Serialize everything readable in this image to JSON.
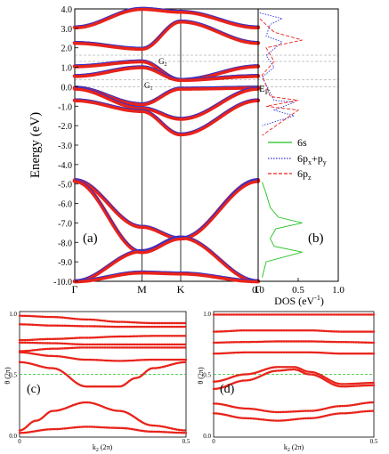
{
  "colors": {
    "thick_band": "#e8231a",
    "thin_band": "#2a35d6",
    "s_curve": "#22c21f",
    "pxy_curve": "#2a35d6",
    "pz_curve": "#e8231a",
    "frame": "#000000",
    "guide": "#909090"
  },
  "panel_a": {
    "label": "(a)",
    "ylabel": "Energy (eV)",
    "ylim": [
      -10.0,
      4.0
    ],
    "yticks": [
      "4.0",
      "3.0",
      "2.0",
      "1.0",
      "0.0",
      "-1.0",
      "-2.0",
      "-3.0",
      "-4.0",
      "-5.0",
      "-6.0",
      "-7.0",
      "-8.0",
      "-9.0",
      "-10.0"
    ],
    "ytick_values": [
      4,
      3,
      2,
      1,
      0,
      -1,
      -2,
      -3,
      -4,
      -5,
      -6,
      -7,
      -8,
      -9,
      -10
    ],
    "kpoints": [
      "Γ",
      "M",
      "K",
      "Γ"
    ],
    "kpoint_positions": [
      0,
      0.5,
      0.789,
      1.366
    ],
    "annotations": {
      "g2": "G",
      "g2_sub": "2",
      "g1": "G",
      "g1_sub": "1"
    }
  },
  "panel_b": {
    "label": "(b)",
    "xlabel": "DOS (eV",
    "xlabel_sup": "-1",
    "xlabel_end": ")",
    "xticks": [
      "0.0",
      "0.5",
      "1.0"
    ],
    "fermi_label": "E",
    "fermi_sub": "F",
    "legend": [
      {
        "text": "6s"
      },
      {
        "text": "6p",
        "sub1": "x",
        "mid": "+p",
        "sub2": "y"
      },
      {
        "text": "6p",
        "sub1": "z"
      }
    ]
  },
  "panel_c": {
    "label": "(c)",
    "ylabel": "θ (2π)",
    "xlabel": "k",
    "xlabel_sub": "2",
    "xlabel_end": " (2π)",
    "yticks": [
      "0.0",
      "0.5",
      "1.0"
    ],
    "xticks": [
      "0",
      "0.5"
    ]
  },
  "panel_d": {
    "label": "(d)",
    "ylabel": "θ (2π)",
    "xlabel": "k",
    "xlabel_sub": "2",
    "xlabel_end": " (2π)",
    "yticks": [
      "0.0",
      "0.5",
      "1.0"
    ],
    "xticks": [
      "0",
      "0.5"
    ]
  },
  "chart_data": [
    {
      "type": "line",
      "panel": "a",
      "xlabel": "",
      "ylabel": "Energy (eV)",
      "ylim": [
        -10,
        4
      ],
      "x": [
        0,
        0.5,
        0.789,
        1.366
      ],
      "series": [
        {
          "values": [
            -4.8,
            -7.2,
            -7.8,
            -4.8
          ]
        },
        {
          "values": [
            -4.85,
            -8.5,
            -7.8,
            -4.85
          ]
        },
        {
          "values": [
            -10,
            -8.45,
            -7.75,
            -10
          ]
        },
        {
          "values": [
            -10,
            -9.55,
            -9.6,
            -10
          ]
        },
        {
          "values": [
            -0.05,
            -0.9,
            -0.1,
            -0.05
          ]
        },
        {
          "values": [
            -0.1,
            -1.1,
            -1.65,
            -0.1
          ]
        },
        {
          "values": [
            -0.7,
            -1.25,
            -2.45,
            -0.7
          ]
        },
        {
          "values": [
            0.55,
            1.0,
            0.35,
            0.55
          ]
        },
        {
          "values": [
            1.05,
            1.3,
            0.35,
            1.05
          ]
        },
        {
          "values": [
            2.25,
            1.95,
            3.35,
            2.25
          ]
        },
        {
          "values": [
            3.05,
            4.0,
            3.85,
            3.05
          ]
        }
      ]
    },
    {
      "type": "line",
      "panel": "b",
      "xlabel": "DOS (eV-1)",
      "xlim": [
        0,
        1.0
      ],
      "ylim": [
        -10,
        4
      ],
      "series": [
        {
          "name": "6s",
          "values": [
            [
              0.05,
              -4.9
            ],
            [
              0.1,
              -5.5
            ],
            [
              0.15,
              -6.2
            ],
            [
              0.25,
              -6.7
            ],
            [
              0.55,
              -7.0
            ],
            [
              0.22,
              -7.3
            ],
            [
              0.15,
              -7.8
            ],
            [
              0.2,
              -8.2
            ],
            [
              0.55,
              -8.5
            ],
            [
              0.1,
              -9.0
            ],
            [
              0.05,
              -9.8
            ]
          ]
        },
        {
          "name": "6px+py",
          "values": [
            [
              0.02,
              3.8
            ],
            [
              0.3,
              3.5
            ],
            [
              0.15,
              3.2
            ],
            [
              0.1,
              2.6
            ],
            [
              0.3,
              2.3
            ],
            [
              0.1,
              1.6
            ],
            [
              0.2,
              1.0
            ],
            [
              0.05,
              0.5
            ],
            [
              0.2,
              -0.7
            ],
            [
              0.45,
              -0.8
            ],
            [
              0.2,
              -1.2
            ],
            [
              0.45,
              -1.5
            ],
            [
              0.05,
              -2.0
            ]
          ]
        },
        {
          "name": "6pz",
          "values": [
            [
              0.02,
              3.5
            ],
            [
              0.2,
              2.8
            ],
            [
              0.55,
              2.4
            ],
            [
              0.1,
              2.0
            ],
            [
              0.2,
              1.3
            ],
            [
              0.05,
              0.6
            ],
            [
              0.15,
              -0.5
            ],
            [
              0.5,
              -0.7
            ],
            [
              0.1,
              -1.0
            ],
            [
              0.5,
              -1.2
            ],
            [
              0.05,
              -2.5
            ]
          ]
        }
      ]
    },
    {
      "type": "line",
      "panel": "c",
      "xlabel": "k2 (2π)",
      "ylabel": "θ (2π)",
      "xlim": [
        0,
        0.5
      ],
      "ylim": [
        0,
        1
      ],
      "series": [
        {
          "values": [
            [
              0,
              0.98
            ],
            [
              0.1,
              0.97
            ],
            [
              0.2,
              0.95
            ],
            [
              0.3,
              0.93
            ],
            [
              0.4,
              0.92
            ],
            [
              0.5,
              0.92
            ]
          ]
        },
        {
          "values": [
            [
              0,
              0.91
            ],
            [
              0.1,
              0.9
            ],
            [
              0.2,
              0.895
            ],
            [
              0.3,
              0.89
            ],
            [
              0.4,
              0.89
            ],
            [
              0.5,
              0.89
            ]
          ]
        },
        {
          "values": [
            [
              0,
              0.78
            ],
            [
              0.1,
              0.79
            ],
            [
              0.2,
              0.8
            ],
            [
              0.3,
              0.81
            ],
            [
              0.4,
              0.815
            ],
            [
              0.5,
              0.815
            ]
          ]
        },
        {
          "values": [
            [
              0,
              0.76
            ],
            [
              0.1,
              0.755
            ],
            [
              0.2,
              0.745
            ],
            [
              0.3,
              0.745
            ],
            [
              0.4,
              0.745
            ],
            [
              0.5,
              0.745
            ]
          ]
        },
        {
          "values": [
            [
              0,
              0.69
            ],
            [
              0.1,
              0.71
            ],
            [
              0.2,
              0.72
            ],
            [
              0.3,
              0.72
            ],
            [
              0.4,
              0.72
            ],
            [
              0.5,
              0.72
            ]
          ]
        },
        {
          "values": [
            [
              0,
              0.68
            ],
            [
              0.1,
              0.65
            ],
            [
              0.2,
              0.62
            ],
            [
              0.3,
              0.61
            ],
            [
              0.4,
              0.62
            ],
            [
              0.5,
              0.62
            ]
          ]
        },
        {
          "values": [
            [
              0,
              0.6
            ],
            [
              0.1,
              0.55
            ],
            [
              0.2,
              0.4
            ],
            [
              0.3,
              0.4
            ],
            [
              0.35,
              0.47
            ],
            [
              0.4,
              0.55
            ],
            [
              0.5,
              0.6
            ]
          ]
        },
        {
          "values": [
            [
              0,
              0.04
            ],
            [
              0.05,
              0.12
            ],
            [
              0.1,
              0.2
            ],
            [
              0.2,
              0.27
            ],
            [
              0.3,
              0.2
            ],
            [
              0.4,
              0.08
            ],
            [
              0.5,
              0.04
            ]
          ]
        },
        {
          "values": [
            [
              0,
              0.02
            ],
            [
              0.1,
              0.05
            ],
            [
              0.2,
              0.07
            ],
            [
              0.3,
              0.06
            ],
            [
              0.4,
              0.03
            ],
            [
              0.5,
              0.02
            ]
          ]
        }
      ]
    },
    {
      "type": "line",
      "panel": "d",
      "xlabel": "k2 (2π)",
      "ylabel": "θ (2π)",
      "xlim": [
        0,
        0.5
      ],
      "ylim": [
        0,
        1
      ],
      "series": [
        {
          "values": [
            [
              0,
              0.99
            ],
            [
              0.1,
              0.99
            ],
            [
              0.2,
              0.99
            ],
            [
              0.3,
              0.99
            ],
            [
              0.4,
              0.99
            ],
            [
              0.5,
              0.99
            ]
          ]
        },
        {
          "values": [
            [
              0,
              0.85
            ],
            [
              0.1,
              0.86
            ],
            [
              0.2,
              0.86
            ],
            [
              0.3,
              0.86
            ],
            [
              0.4,
              0.85
            ],
            [
              0.5,
              0.85
            ]
          ]
        },
        {
          "values": [
            [
              0,
              0.76
            ],
            [
              0.1,
              0.765
            ],
            [
              0.2,
              0.77
            ],
            [
              0.3,
              0.77
            ],
            [
              0.4,
              0.765
            ],
            [
              0.5,
              0.76
            ]
          ]
        },
        {
          "values": [
            [
              0,
              0.67
            ],
            [
              0.1,
              0.68
            ],
            [
              0.2,
              0.68
            ],
            [
              0.3,
              0.68
            ],
            [
              0.4,
              0.67
            ],
            [
              0.5,
              0.67
            ]
          ]
        },
        {
          "values": [
            [
              0,
              0.44
            ],
            [
              0.1,
              0.5
            ],
            [
              0.2,
              0.56
            ],
            [
              0.25,
              0.56
            ],
            [
              0.3,
              0.52
            ],
            [
              0.4,
              0.42
            ],
            [
              0.5,
              0.43
            ]
          ]
        },
        {
          "values": [
            [
              0,
              0.38
            ],
            [
              0.1,
              0.45
            ],
            [
              0.2,
              0.53
            ],
            [
              0.25,
              0.54
            ],
            [
              0.3,
              0.5
            ],
            [
              0.4,
              0.4
            ],
            [
              0.5,
              0.41
            ]
          ]
        },
        {
          "values": [
            [
              0,
              0.26
            ],
            [
              0.1,
              0.22
            ],
            [
              0.2,
              0.19
            ],
            [
              0.3,
              0.2
            ],
            [
              0.4,
              0.24
            ],
            [
              0.5,
              0.27
            ]
          ]
        },
        {
          "values": [
            [
              0,
              0.18
            ],
            [
              0.1,
              0.14
            ],
            [
              0.2,
              0.12
            ],
            [
              0.3,
              0.14
            ],
            [
              0.4,
              0.18
            ],
            [
              0.5,
              0.2
            ]
          ]
        }
      ]
    }
  ]
}
